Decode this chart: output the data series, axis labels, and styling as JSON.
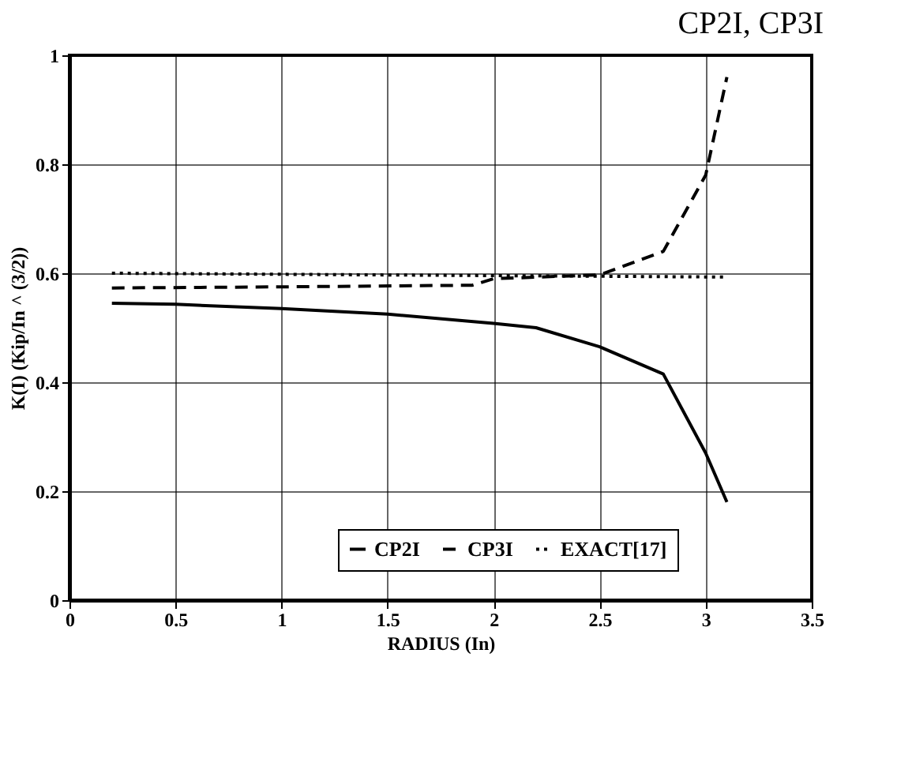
{
  "chart_data": {
    "type": "line",
    "title": "CP2I, CP3I",
    "xlabel": "RADIUS    (In)",
    "ylabel": "K(I)    (Kip/In ^ (3/2))",
    "xlim": [
      0,
      3.5
    ],
    "xticks": [
      0,
      0.5,
      1,
      1.5,
      2,
      2.5,
      3,
      3.5
    ],
    "ylim": [
      0,
      1
    ],
    "yticks": [
      0,
      0.2,
      0.4,
      0.6,
      0.8,
      1
    ],
    "grid": true,
    "legend": "bottom",
    "marker": "none",
    "series": [
      {
        "name": "CP2I",
        "color": "#000000",
        "line_style": "solid",
        "x": [
          0.2,
          0.5,
          1.0,
          1.5,
          2.0,
          2.2,
          2.5,
          2.8,
          3.0,
          3.1
        ],
        "values": [
          0.545,
          0.543,
          0.535,
          0.525,
          0.508,
          0.5,
          0.465,
          0.415,
          0.27,
          0.18
        ]
      },
      {
        "name": "CP3I",
        "color": "#000000",
        "line_style": "dashed",
        "x": [
          0.2,
          1.0,
          1.9,
          2.0,
          2.5,
          2.8,
          3.0,
          3.1
        ],
        "values": [
          0.573,
          0.575,
          0.578,
          0.59,
          0.597,
          0.64,
          0.78,
          0.96
        ]
      },
      {
        "name": "EXACT[17]",
        "color": "#000000",
        "line_style": "dotted",
        "x": [
          0.2,
          3.1
        ],
        "values": [
          0.6,
          0.593
        ]
      }
    ]
  }
}
